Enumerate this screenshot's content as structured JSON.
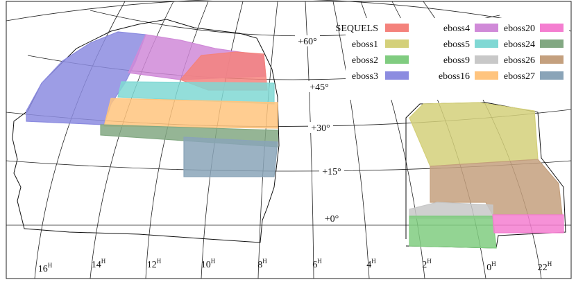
{
  "legend": [
    {
      "name": "SEQUELS",
      "color": "#f4827c"
    },
    {
      "name": "eboss1",
      "color": "#d4d07a"
    },
    {
      "name": "eboss2",
      "color": "#80cc80"
    },
    {
      "name": "eboss3",
      "color": "#8c8ce0"
    },
    {
      "name": "eboss4",
      "color": "#d08ad8"
    },
    {
      "name": "eboss5",
      "color": "#80d8d4"
    },
    {
      "name": "eboss9",
      "color": "#c8c8c8"
    },
    {
      "name": "eboss16",
      "color": "#ffc47e"
    },
    {
      "name": "eboss20",
      "color": "#f47ed0"
    },
    {
      "name": "eboss24",
      "color": "#82a882"
    },
    {
      "name": "eboss26",
      "color": "#c4a07e"
    },
    {
      "name": "eboss27",
      "color": "#8aa4b8"
    }
  ],
  "dec_labels": [
    "+60°",
    "+45°",
    "+30°",
    "+15°",
    "+0°"
  ],
  "ra_labels": [
    {
      "hours": "16",
      "sup": "H"
    },
    {
      "hours": "14",
      "sup": "H"
    },
    {
      "hours": "12",
      "sup": "H"
    },
    {
      "hours": "10",
      "sup": "H"
    },
    {
      "hours": "8",
      "sup": "H"
    },
    {
      "hours": "6",
      "sup": "H"
    },
    {
      "hours": "4",
      "sup": "H"
    },
    {
      "hours": "2",
      "sup": "H"
    },
    {
      "hours": "0",
      "sup": "H"
    },
    {
      "hours": "22",
      "sup": "H"
    }
  ]
}
